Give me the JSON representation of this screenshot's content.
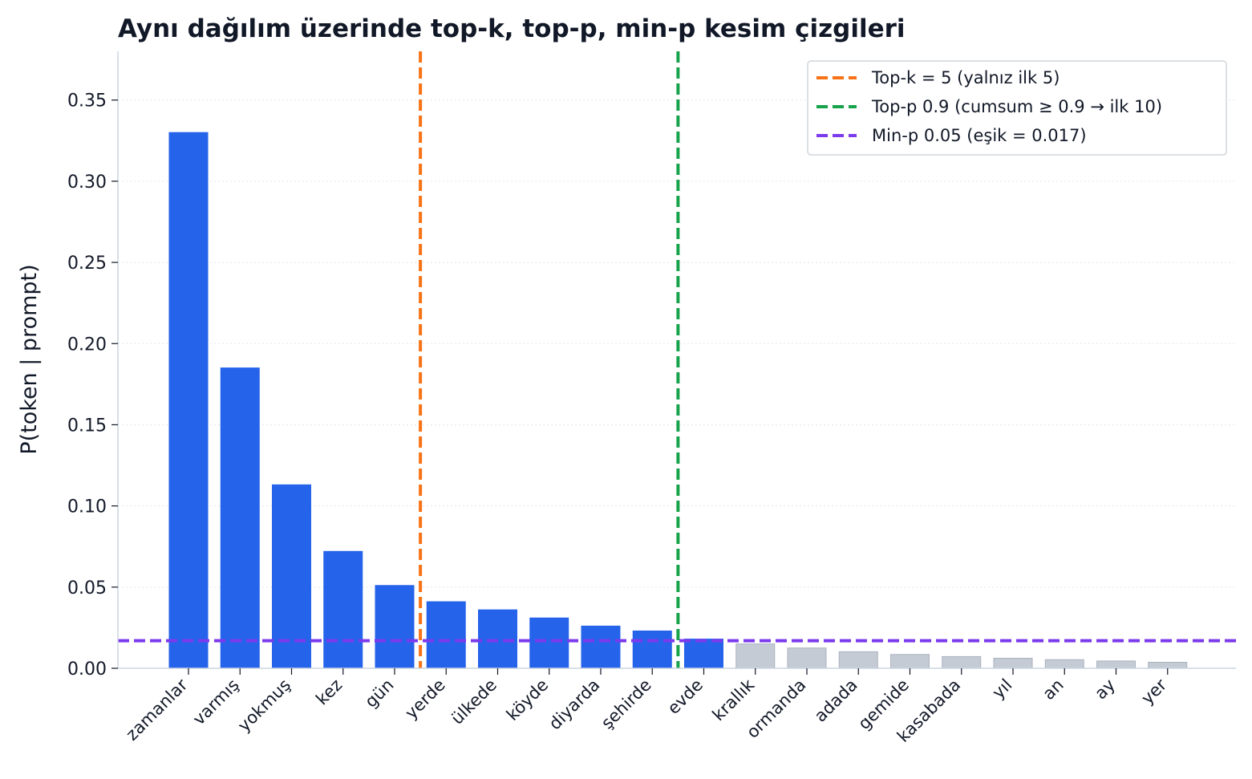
{
  "chart_data": {
    "type": "bar",
    "title": "Aynı dağılım üzerinde top-k, top-p, min-p kesim çizgileri",
    "xlabel": "",
    "ylabel": "P(token | prompt)",
    "ylim": [
      0,
      0.38
    ],
    "yticks": [
      "0.00",
      "0.05",
      "0.10",
      "0.15",
      "0.20",
      "0.25",
      "0.30",
      "0.35"
    ],
    "grid": "horizontal-dotted",
    "legend_position": "top-right",
    "categories": [
      "zamanlar",
      "varmış",
      "yokmuş",
      "kez",
      "gün",
      "yerde",
      "ülkede",
      "köyde",
      "diyarda",
      "şehirde",
      "evde",
      "krallık",
      "ormanda",
      "adada",
      "gemide",
      "kasabada",
      "yıl",
      "an",
      "ay",
      "yer"
    ],
    "values": [
      0.33,
      0.185,
      0.113,
      0.072,
      0.051,
      0.041,
      0.036,
      0.031,
      0.026,
      0.023,
      0.018,
      0.015,
      0.0125,
      0.0102,
      0.0085,
      0.0072,
      0.0062,
      0.0053,
      0.0045,
      0.0037
    ],
    "kept_flags": [
      true,
      true,
      true,
      true,
      true,
      true,
      true,
      true,
      true,
      true,
      true,
      false,
      false,
      false,
      false,
      false,
      false,
      false,
      false,
      false
    ],
    "colors": {
      "kept": "#2563eb",
      "excluded": "#c5cbd5",
      "excluded_edge": "#aab2bf"
    },
    "cutoffs": [
      {
        "kind": "vertical",
        "after_index": 4,
        "color": "#f97316",
        "label": "Top-k = 5 (yalnız ilk 5)"
      },
      {
        "kind": "vertical",
        "after_index": 9,
        "color": "#16a34a",
        "label": "Top-p 0.9 (cumsum ≥ 0.9 → ilk 10)"
      },
      {
        "kind": "horizontal",
        "value": 0.017,
        "color": "#7c3aed",
        "label": "Min-p 0.05 (eşik = 0.017)"
      }
    ]
  }
}
